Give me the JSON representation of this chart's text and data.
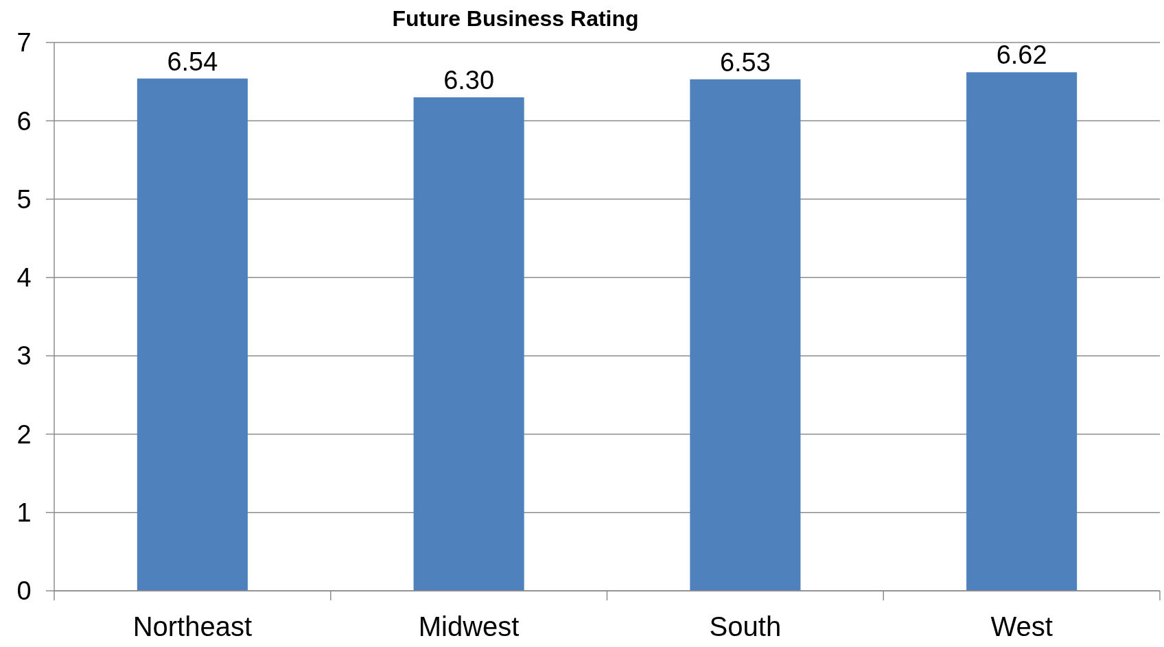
{
  "chart_data": {
    "type": "bar",
    "title": "Future Business Rating",
    "categories": [
      "Northeast",
      "Midwest",
      "South",
      "West"
    ],
    "values": [
      6.54,
      6.3,
      6.53,
      6.62
    ],
    "value_labels": [
      "6.54",
      "6.30",
      "6.53",
      "6.62"
    ],
    "color": "#4f81bd",
    "ylim": [
      0,
      7
    ],
    "yticks": [
      0,
      1,
      2,
      3,
      4,
      5,
      6,
      7
    ],
    "grid": "y"
  }
}
